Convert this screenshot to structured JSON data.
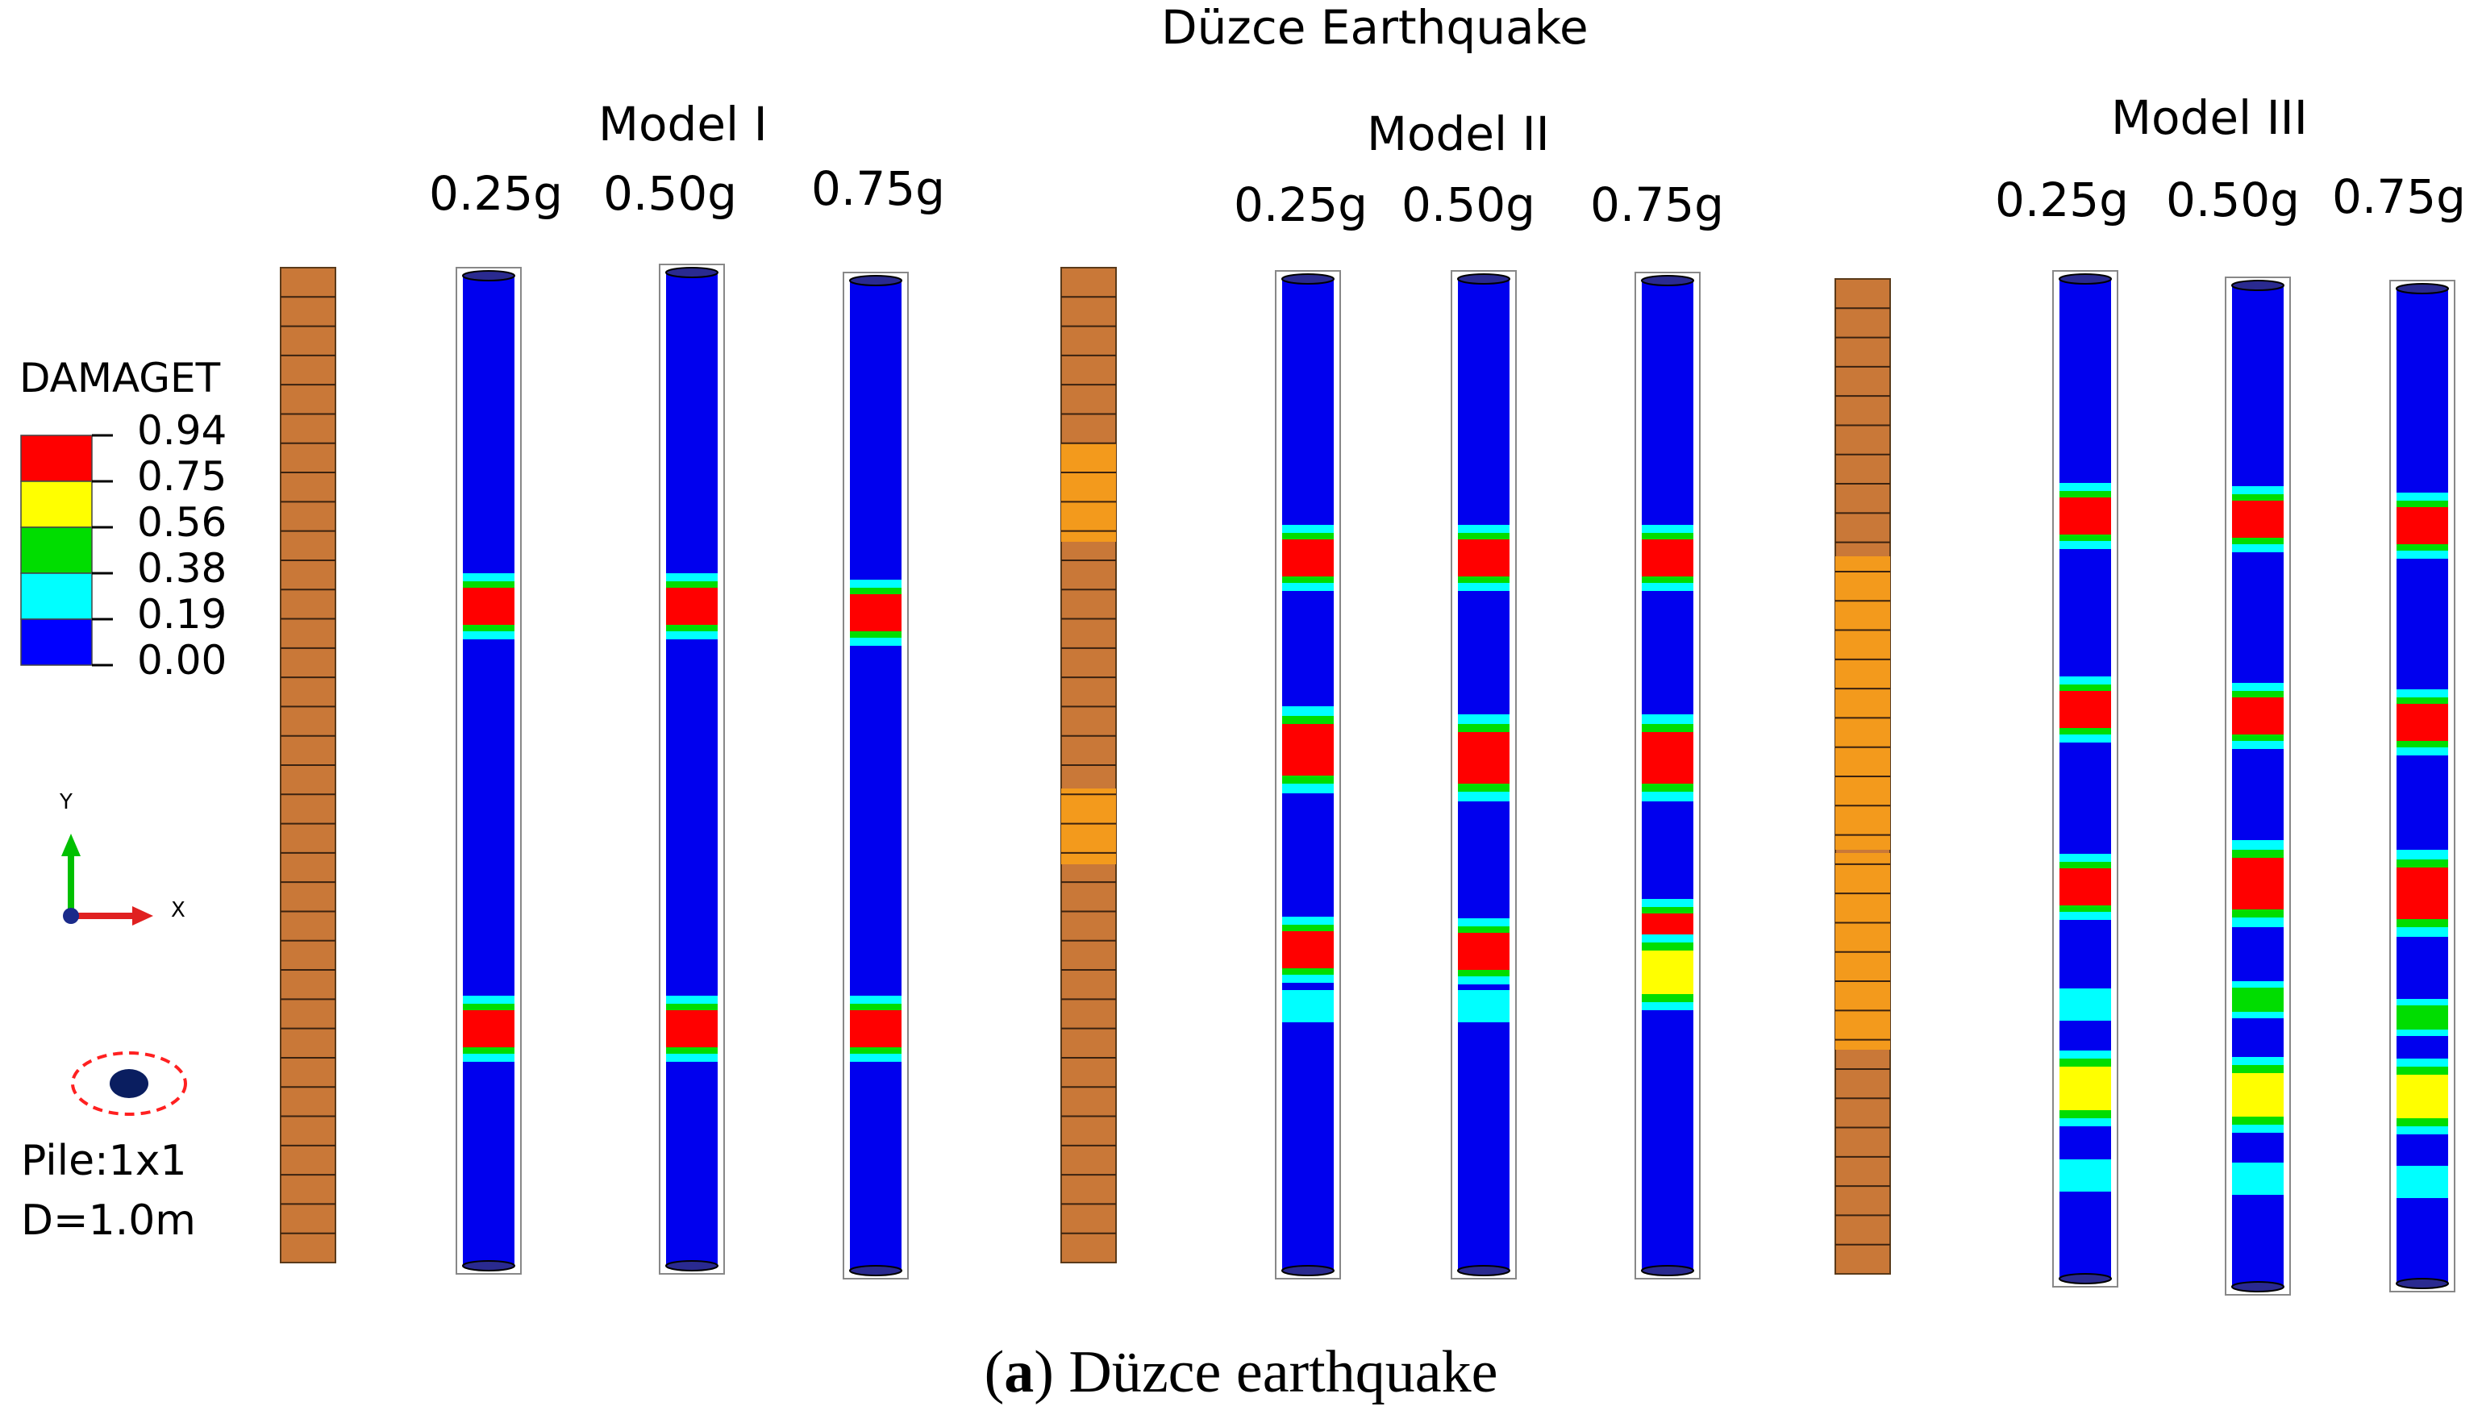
{
  "title": "Düzce Earthquake",
  "models": [
    {
      "name": "Model I",
      "pga": [
        "0.25g",
        "0.50g",
        "0.75g"
      ]
    },
    {
      "name": "Model II",
      "pga": [
        "0.25g",
        "0.50g",
        "0.75g"
      ]
    },
    {
      "name": "Model III",
      "pga": [
        "0.25g",
        "0.50g",
        "0.75g"
      ]
    }
  ],
  "legend": {
    "title": "DAMAGET",
    "values": [
      "0.94",
      "0.75",
      "0.56",
      "0.38",
      "0.19",
      "0.00"
    ],
    "colors": [
      "#ff0000",
      "#ffff00",
      "#00dd00",
      "#00ffff",
      "#0000ff"
    ]
  },
  "axes": {
    "y": "Y",
    "x": "X"
  },
  "pile": {
    "config": "Pile:1x1",
    "diameter": "D=1.0m"
  },
  "caption": {
    "label": "a",
    "text": "Düzce earthquake"
  },
  "colors": {
    "soil": "#c97838",
    "soft_layer": "#f39a1c",
    "pile": "#0000ee",
    "damage_red": "#ff0000",
    "damage_yellow": "#ffff00",
    "damage_green": "#00dd00",
    "damage_cyan": "#00ffff"
  }
}
